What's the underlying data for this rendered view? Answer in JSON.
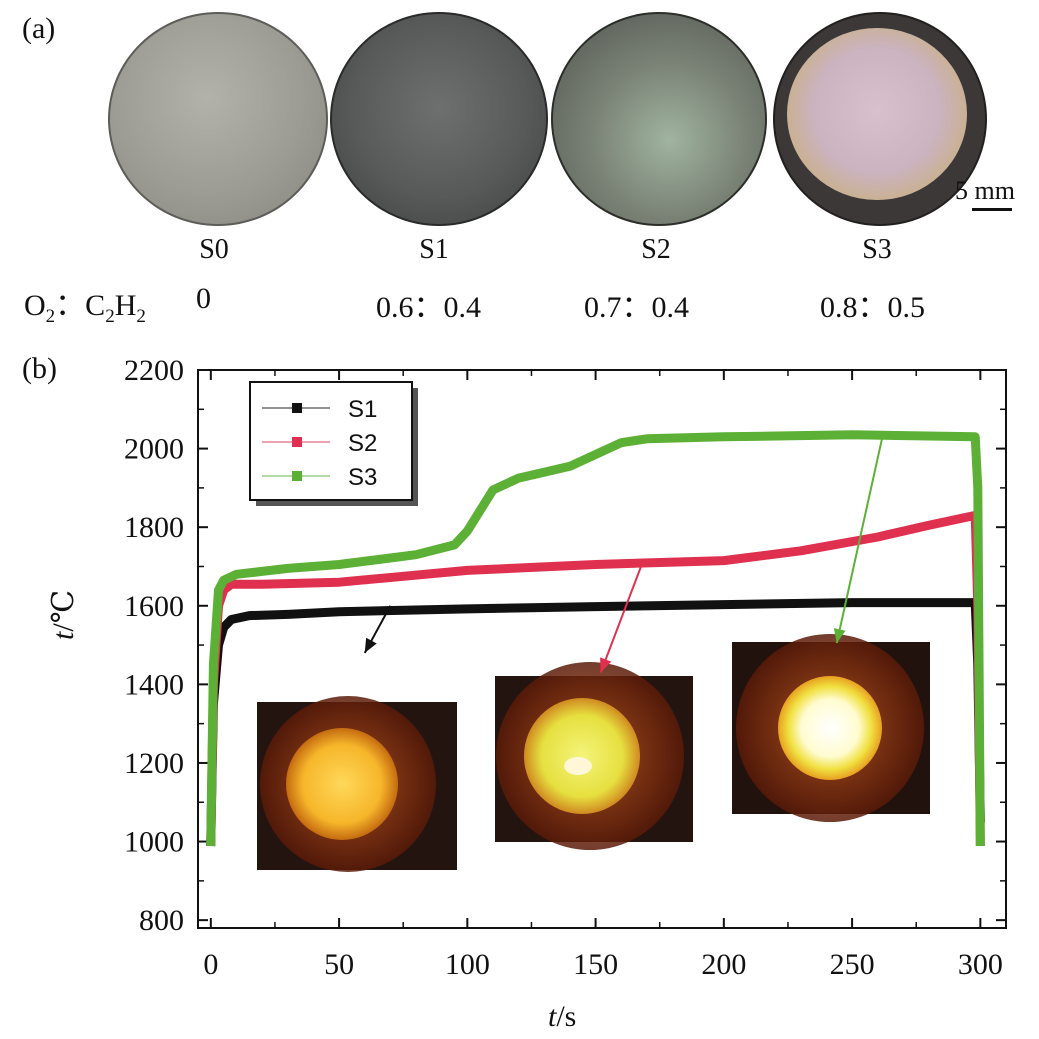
{
  "panel_a": {
    "label": "(a)",
    "ratio_label_main": "O",
    "ratio_label_sub1": "2",
    "ratio_label_sep": "：C",
    "ratio_label_sub2": "2",
    "ratio_label_h": "H",
    "ratio_label_sub3": "2",
    "samples": [
      {
        "label": "S0",
        "ratio": "0",
        "color": "#a0a098"
      },
      {
        "label": "S1",
        "ratio": "0.6：0.4",
        "color": "#5a5c5c"
      },
      {
        "label": "S2",
        "ratio": "0.7：0.4",
        "color": "#6c7068"
      },
      {
        "label": "S3",
        "ratio": "0.8：0.5",
        "color": "#c9b4bc"
      }
    ],
    "scale_bar": "5 mm"
  },
  "panel_b": {
    "label": "(b)"
  },
  "chart_data": {
    "type": "line",
    "xlabel_var": "t",
    "xlabel_unit": "/s",
    "ylabel_var": "t",
    "ylabel_unit": "/℃",
    "xlim": [
      -5,
      310
    ],
    "ylim": [
      780,
      2200
    ],
    "xticks": [
      0,
      50,
      100,
      150,
      200,
      250,
      300
    ],
    "yticks": [
      800,
      1000,
      1200,
      1400,
      1600,
      1800,
      2000,
      2200
    ],
    "legend_position": "top-left",
    "series": [
      {
        "name": "S1",
        "color": "#111111",
        "x": [
          0,
          1,
          3,
          5,
          8,
          15,
          30,
          50,
          100,
          150,
          200,
          250,
          298,
          299,
          300
        ],
        "y": [
          1000,
          1350,
          1500,
          1545,
          1565,
          1575,
          1578,
          1585,
          1592,
          1598,
          1603,
          1608,
          1608,
          1450,
          1060
        ]
      },
      {
        "name": "S2",
        "color": "#e0304f",
        "x": [
          0,
          1,
          3,
          5,
          8,
          20,
          50,
          100,
          150,
          200,
          230,
          260,
          280,
          298,
          299,
          300
        ],
        "y": [
          1000,
          1400,
          1600,
          1640,
          1655,
          1655,
          1660,
          1690,
          1705,
          1715,
          1740,
          1775,
          1805,
          1830,
          1600,
          1000
        ]
      },
      {
        "name": "S3",
        "color": "#5cb035",
        "x": [
          0,
          1,
          3,
          5,
          10,
          30,
          50,
          80,
          95,
          100,
          110,
          120,
          140,
          160,
          170,
          200,
          250,
          298,
          299,
          300
        ],
        "y": [
          1000,
          1450,
          1640,
          1665,
          1680,
          1695,
          1705,
          1730,
          1755,
          1790,
          1895,
          1925,
          1955,
          2015,
          2025,
          2030,
          2035,
          2030,
          1900,
          1000
        ]
      }
    ],
    "inset_images": [
      {
        "description_key": "S1",
        "arrow_from": [
          70,
          1600
        ],
        "arrow_to": [
          60,
          1480
        ]
      },
      {
        "description_key": "S2",
        "arrow_from": [
          168,
          1705
        ],
        "arrow_to": [
          152,
          1430
        ]
      },
      {
        "description_key": "S3",
        "arrow_from": [
          262,
          2035
        ],
        "arrow_to": [
          244,
          1505
        ]
      }
    ]
  }
}
